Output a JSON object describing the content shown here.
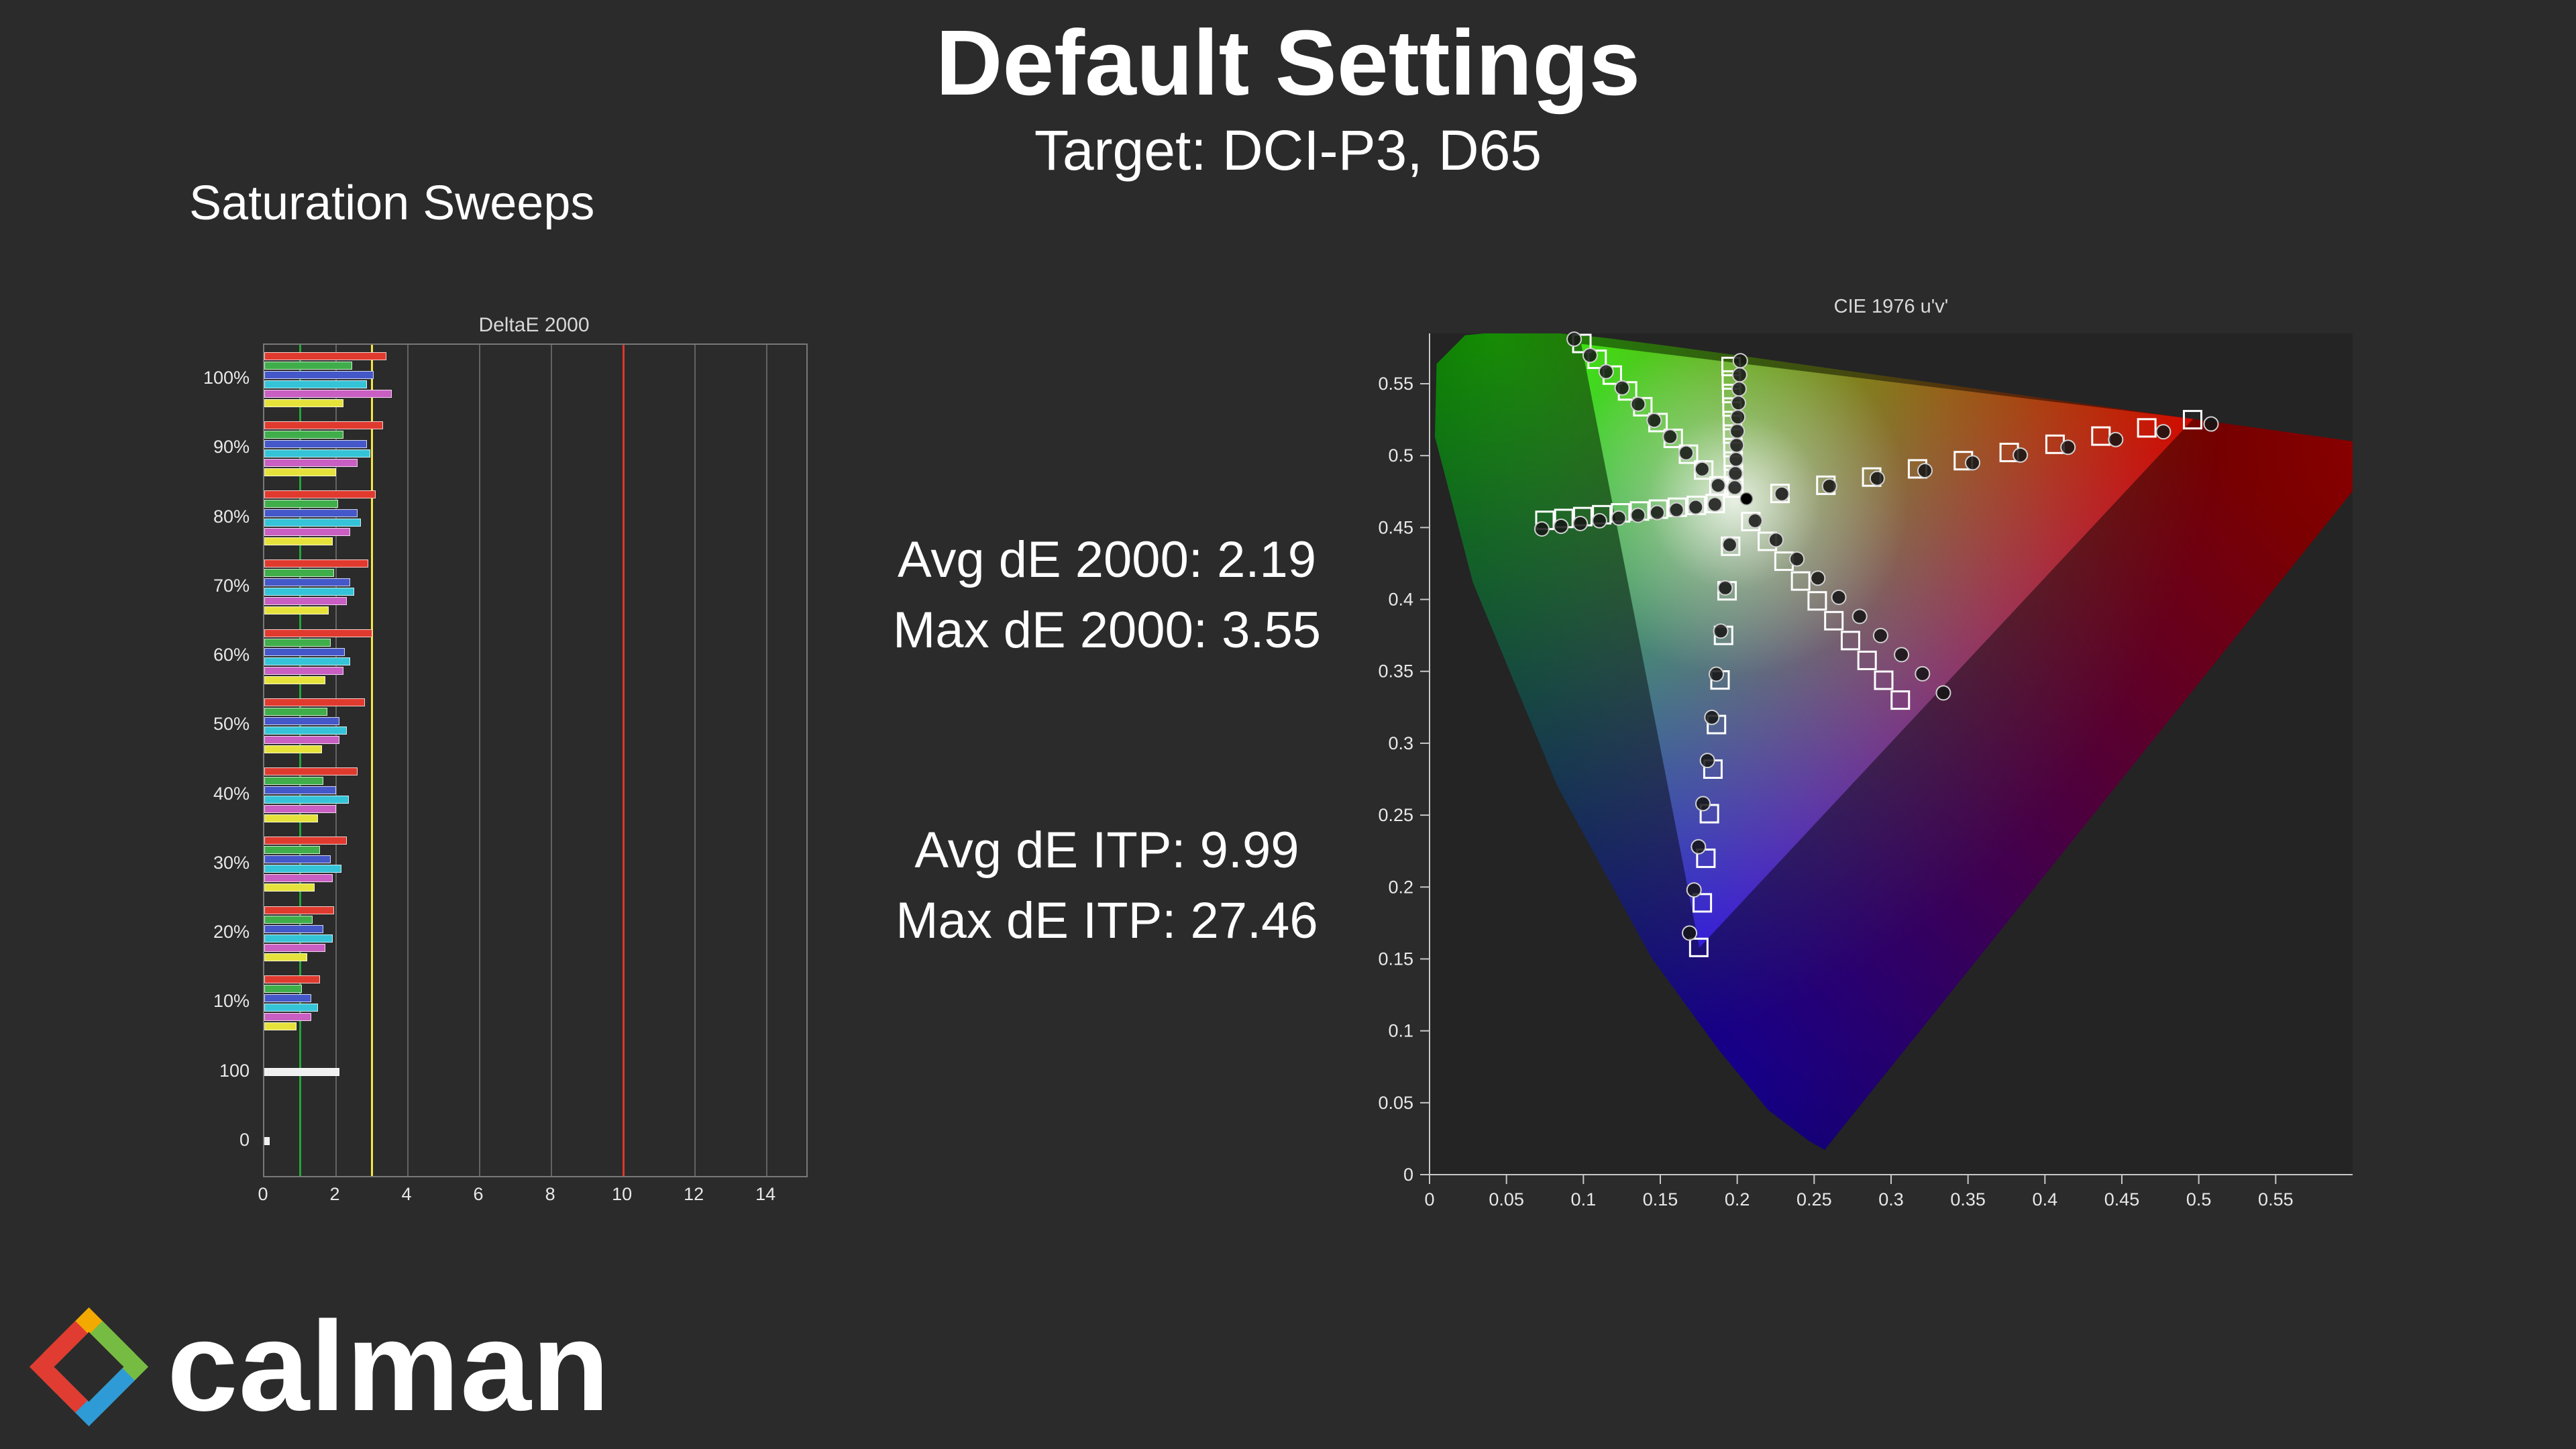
{
  "page": {
    "title": "Default Settings",
    "subtitle": "Target: DCI-P3, D65",
    "section_label": "Saturation Sweeps",
    "background": "#2b2b2b"
  },
  "stats": {
    "avg_de2000": "Avg dE 2000: 2.19",
    "max_de2000": "Max dE 2000: 3.55",
    "avg_itp": "Avg dE ITP: 9.99",
    "max_itp": "Max dE ITP: 27.46"
  },
  "logo": {
    "text": "calman",
    "colors": {
      "yellow": "#F2A900",
      "green": "#76BC43",
      "blue": "#2E9BD6",
      "red": "#E03C31"
    }
  },
  "chart_data": [
    {
      "type": "bar",
      "title": "DeltaE 2000",
      "orientation": "horizontal",
      "xlim": [
        0,
        15.1
      ],
      "xticks": [
        0,
        2,
        4,
        6,
        8,
        10,
        12,
        14
      ],
      "reference_lines": [
        {
          "value": 1,
          "color": "#23a638"
        },
        {
          "value": 3,
          "color": "#f5e642"
        },
        {
          "value": 10,
          "color": "#e0352b"
        }
      ],
      "categories": [
        "100%",
        "90%",
        "80%",
        "70%",
        "60%",
        "50%",
        "40%",
        "30%",
        "20%",
        "10%",
        "100",
        "0"
      ],
      "series": [
        {
          "name": "Red",
          "color": "#e03a2f",
          "values": [
            3.4,
            3.3,
            3.1,
            2.9,
            3.0,
            2.8,
            2.6,
            2.3,
            1.95,
            1.55,
            null,
            null
          ]
        },
        {
          "name": "Green",
          "color": "#3fae4a",
          "values": [
            2.45,
            2.2,
            2.05,
            1.95,
            1.85,
            1.75,
            1.65,
            1.55,
            1.35,
            1.05,
            null,
            null
          ]
        },
        {
          "name": "Blue",
          "color": "#4558c9",
          "values": [
            3.05,
            2.85,
            2.6,
            2.4,
            2.25,
            2.1,
            2.0,
            1.85,
            1.65,
            1.3,
            null,
            null
          ]
        },
        {
          "name": "Cyan",
          "color": "#35c3d8",
          "values": [
            2.85,
            2.95,
            2.7,
            2.5,
            2.4,
            2.3,
            2.35,
            2.15,
            1.9,
            1.5,
            null,
            null
          ]
        },
        {
          "name": "Magenta",
          "color": "#c95fc2",
          "values": [
            3.55,
            2.6,
            2.4,
            2.3,
            2.2,
            2.1,
            2.0,
            1.9,
            1.7,
            1.3,
            null,
            null
          ]
        },
        {
          "name": "Yellow",
          "color": "#e6e23c",
          "values": [
            2.2,
            2.0,
            1.9,
            1.8,
            1.7,
            1.6,
            1.5,
            1.4,
            1.2,
            0.9,
            null,
            null
          ]
        },
        {
          "name": "White",
          "color": "#f0f0f0",
          "values": [
            null,
            null,
            null,
            null,
            null,
            null,
            null,
            null,
            null,
            null,
            2.1,
            0.15
          ]
        }
      ]
    },
    {
      "type": "scatter",
      "title": "CIE 1976 u'v'",
      "xlim": [
        0,
        0.6
      ],
      "ylim": [
        0,
        0.585
      ],
      "xticks": [
        {
          "value": 0,
          "label": "0"
        },
        {
          "value": 0.05,
          "label": "0.05"
        },
        {
          "value": 0.1,
          "label": "0.1"
        },
        {
          "value": 0.15,
          "label": "0.15"
        },
        {
          "value": 0.2,
          "label": "0.2"
        },
        {
          "value": 0.25,
          "label": "0.25"
        },
        {
          "value": 0.3,
          "label": "0.3"
        },
        {
          "value": 0.35,
          "label": "0.35"
        },
        {
          "value": 0.4,
          "label": "0.4"
        },
        {
          "value": 0.45,
          "label": "0.45"
        },
        {
          "value": 0.5,
          "label": "0.5"
        },
        {
          "value": 0.55,
          "label": "0.55"
        }
      ],
      "yticks": [
        {
          "value": 0,
          "label": "0"
        },
        {
          "value": 0.05,
          "label": "0.05"
        },
        {
          "value": 0.1,
          "label": "0.1"
        },
        {
          "value": 0.15,
          "label": "0.15"
        },
        {
          "value": 0.2,
          "label": "0.2"
        },
        {
          "value": 0.25,
          "label": "0.25"
        },
        {
          "value": 0.3,
          "label": "0.3"
        },
        {
          "value": 0.35,
          "label": "0.35"
        },
        {
          "value": 0.4,
          "label": "0.4"
        },
        {
          "value": 0.45,
          "label": "0.45"
        },
        {
          "value": 0.5,
          "label": "0.5"
        },
        {
          "value": 0.55,
          "label": "0.55"
        }
      ],
      "white_point": {
        "u": 0.198,
        "v": 0.468
      },
      "measured_white": [
        0.206,
        0.47
      ],
      "gamut_p3": {
        "name": "DCI-P3",
        "red": [
          0.4964,
          0.5255
        ],
        "green": [
          0.0986,
          0.5777
        ],
        "blue": [
          0.1754,
          0.1579
        ]
      },
      "spectral_locus": [
        [
          0.2568,
          0.0172
        ],
        [
          0.2465,
          0.0235
        ],
        [
          0.22,
          0.045
        ],
        [
          0.1877,
          0.0871
        ],
        [
          0.1441,
          0.151
        ],
        [
          0.0828,
          0.2708
        ],
        [
          0.0282,
          0.4117
        ],
        [
          0.0035,
          0.5131
        ],
        [
          0.0046,
          0.5638
        ],
        [
          0.0231,
          0.5837
        ],
        [
          0.0501,
          0.5865
        ],
        [
          0.0792,
          0.5856
        ],
        [
          0.1127,
          0.5821
        ],
        [
          0.1531,
          0.5766
        ],
        [
          0.2026,
          0.5694
        ],
        [
          0.2623,
          0.5604
        ],
        [
          0.3315,
          0.5501
        ],
        [
          0.4035,
          0.5393
        ],
        [
          0.4692,
          0.5296
        ],
        [
          0.5203,
          0.5219
        ],
        [
          0.5565,
          0.5165
        ],
        [
          0.583,
          0.5125
        ],
        [
          0.6234,
          0.5065
        ]
      ],
      "sweeps": [
        {
          "name": "red",
          "targets": [
            [
              0.2278,
              0.4737
            ],
            [
              0.2576,
              0.4794
            ],
            [
              0.2874,
              0.4851
            ],
            [
              0.3172,
              0.4908
            ],
            [
              0.347,
              0.4965
            ],
            [
              0.3768,
              0.5022
            ],
            [
              0.4066,
              0.5079
            ],
            [
              0.4364,
              0.5136
            ],
            [
              0.4662,
              0.5193
            ],
            [
              0.496,
              0.525
            ]
          ],
          "measured": [
            [
              0.229,
              0.4734
            ],
            [
              0.26,
              0.4788
            ],
            [
              0.291,
              0.4842
            ],
            [
              0.322,
              0.4896
            ],
            [
              0.353,
              0.495
            ],
            [
              0.384,
              0.5004
            ],
            [
              0.415,
              0.5058
            ],
            [
              0.446,
              0.5112
            ],
            [
              0.477,
              0.5166
            ],
            [
              0.508,
              0.522
            ]
          ]
        },
        {
          "name": "green",
          "targets": [
            [
              0.1881,
              0.479
            ],
            [
              0.1782,
              0.49
            ],
            [
              0.1683,
              0.501
            ],
            [
              0.1584,
              0.512
            ],
            [
              0.1485,
              0.523
            ],
            [
              0.1386,
              0.534
            ],
            [
              0.1287,
              0.545
            ],
            [
              0.1188,
              0.556
            ],
            [
              0.1089,
              0.567
            ],
            [
              0.099,
              0.578
            ]
          ],
          "measured": [
            [
              0.1876,
              0.4793
            ],
            [
              0.1772,
              0.4906
            ],
            [
              0.1668,
              0.5019
            ],
            [
              0.1564,
              0.5132
            ],
            [
              0.146,
              0.5245
            ],
            [
              0.1356,
              0.5358
            ],
            [
              0.1252,
              0.5471
            ],
            [
              0.1148,
              0.5584
            ],
            [
              0.1044,
              0.5697
            ],
            [
              0.094,
              0.581
            ]
          ]
        },
        {
          "name": "blue",
          "targets": [
            [
              0.1957,
              0.437
            ],
            [
              0.1934,
              0.406
            ],
            [
              0.1911,
              0.375
            ],
            [
              0.1888,
              0.344
            ],
            [
              0.1865,
              0.313
            ],
            [
              0.1842,
              0.282
            ],
            [
              0.1819,
              0.251
            ],
            [
              0.1796,
              0.22
            ],
            [
              0.1773,
              0.189
            ],
            [
              0.175,
              0.158
            ]
          ],
          "measured": [
            [
              0.1951,
              0.438
            ],
            [
              0.1922,
              0.408
            ],
            [
              0.1893,
              0.378
            ],
            [
              0.1864,
              0.348
            ],
            [
              0.1835,
              0.318
            ],
            [
              0.1806,
              0.288
            ],
            [
              0.1777,
              0.258
            ],
            [
              0.1748,
              0.228
            ],
            [
              0.1719,
              0.198
            ],
            [
              0.169,
              0.168
            ]
          ]
        },
        {
          "name": "cyan",
          "targets": [
            [
              0.1857,
              0.4667
            ],
            [
              0.1734,
              0.4654
            ],
            [
              0.1611,
              0.4641
            ],
            [
              0.1488,
              0.4628
            ],
            [
              0.1365,
              0.4615
            ],
            [
              0.1242,
              0.4602
            ],
            [
              0.1119,
              0.4589
            ],
            [
              0.0996,
              0.4576
            ],
            [
              0.0873,
              0.4563
            ],
            [
              0.075,
              0.455
            ]
          ],
          "measured": [
            [
              0.1855,
              0.4661
            ],
            [
              0.173,
              0.4642
            ],
            [
              0.1605,
              0.4623
            ],
            [
              0.148,
              0.4604
            ],
            [
              0.1355,
              0.4585
            ],
            [
              0.123,
              0.4566
            ],
            [
              0.1105,
              0.4547
            ],
            [
              0.098,
              0.4528
            ],
            [
              0.0855,
              0.4509
            ],
            [
              0.073,
              0.449
            ]
          ]
        },
        {
          "name": "magenta",
          "targets": [
            [
              0.2088,
              0.4542
            ],
            [
              0.2196,
              0.4404
            ],
            [
              0.2304,
              0.4266
            ],
            [
              0.2412,
              0.4128
            ],
            [
              0.252,
              0.399
            ],
            [
              0.2628,
              0.3852
            ],
            [
              0.2736,
              0.3714
            ],
            [
              0.2844,
              0.3576
            ],
            [
              0.2952,
              0.3438
            ],
            [
              0.306,
              0.33
            ]
          ],
          "measured": [
            [
              0.2116,
              0.4547
            ],
            [
              0.2252,
              0.4414
            ],
            [
              0.2388,
              0.4281
            ],
            [
              0.2524,
              0.4148
            ],
            [
              0.266,
              0.4015
            ],
            [
              0.2796,
              0.3882
            ],
            [
              0.2932,
              0.3749
            ],
            [
              0.3068,
              0.3616
            ],
            [
              0.3204,
              0.3483
            ],
            [
              0.334,
              0.335
            ]
          ]
        },
        {
          "name": "yellow",
          "targets": [
            [
              0.1978,
              0.4774
            ],
            [
              0.1976,
              0.4868
            ],
            [
              0.1974,
              0.4962
            ],
            [
              0.1972,
              0.5056
            ],
            [
              0.197,
              0.515
            ],
            [
              0.1968,
              0.5244
            ],
            [
              0.1966,
              0.5338
            ],
            [
              0.1964,
              0.5432
            ],
            [
              0.1962,
              0.5526
            ],
            [
              0.196,
              0.562
            ]
          ],
          "measured": [
            [
              0.1984,
              0.4778
            ],
            [
              0.1988,
              0.4876
            ],
            [
              0.1992,
              0.4974
            ],
            [
              0.1996,
              0.5072
            ],
            [
              0.2,
              0.517
            ],
            [
              0.2004,
              0.5268
            ],
            [
              0.2008,
              0.5366
            ],
            [
              0.2012,
              0.5464
            ],
            [
              0.2016,
              0.5562
            ],
            [
              0.202,
              0.566
            ]
          ]
        }
      ]
    }
  ]
}
